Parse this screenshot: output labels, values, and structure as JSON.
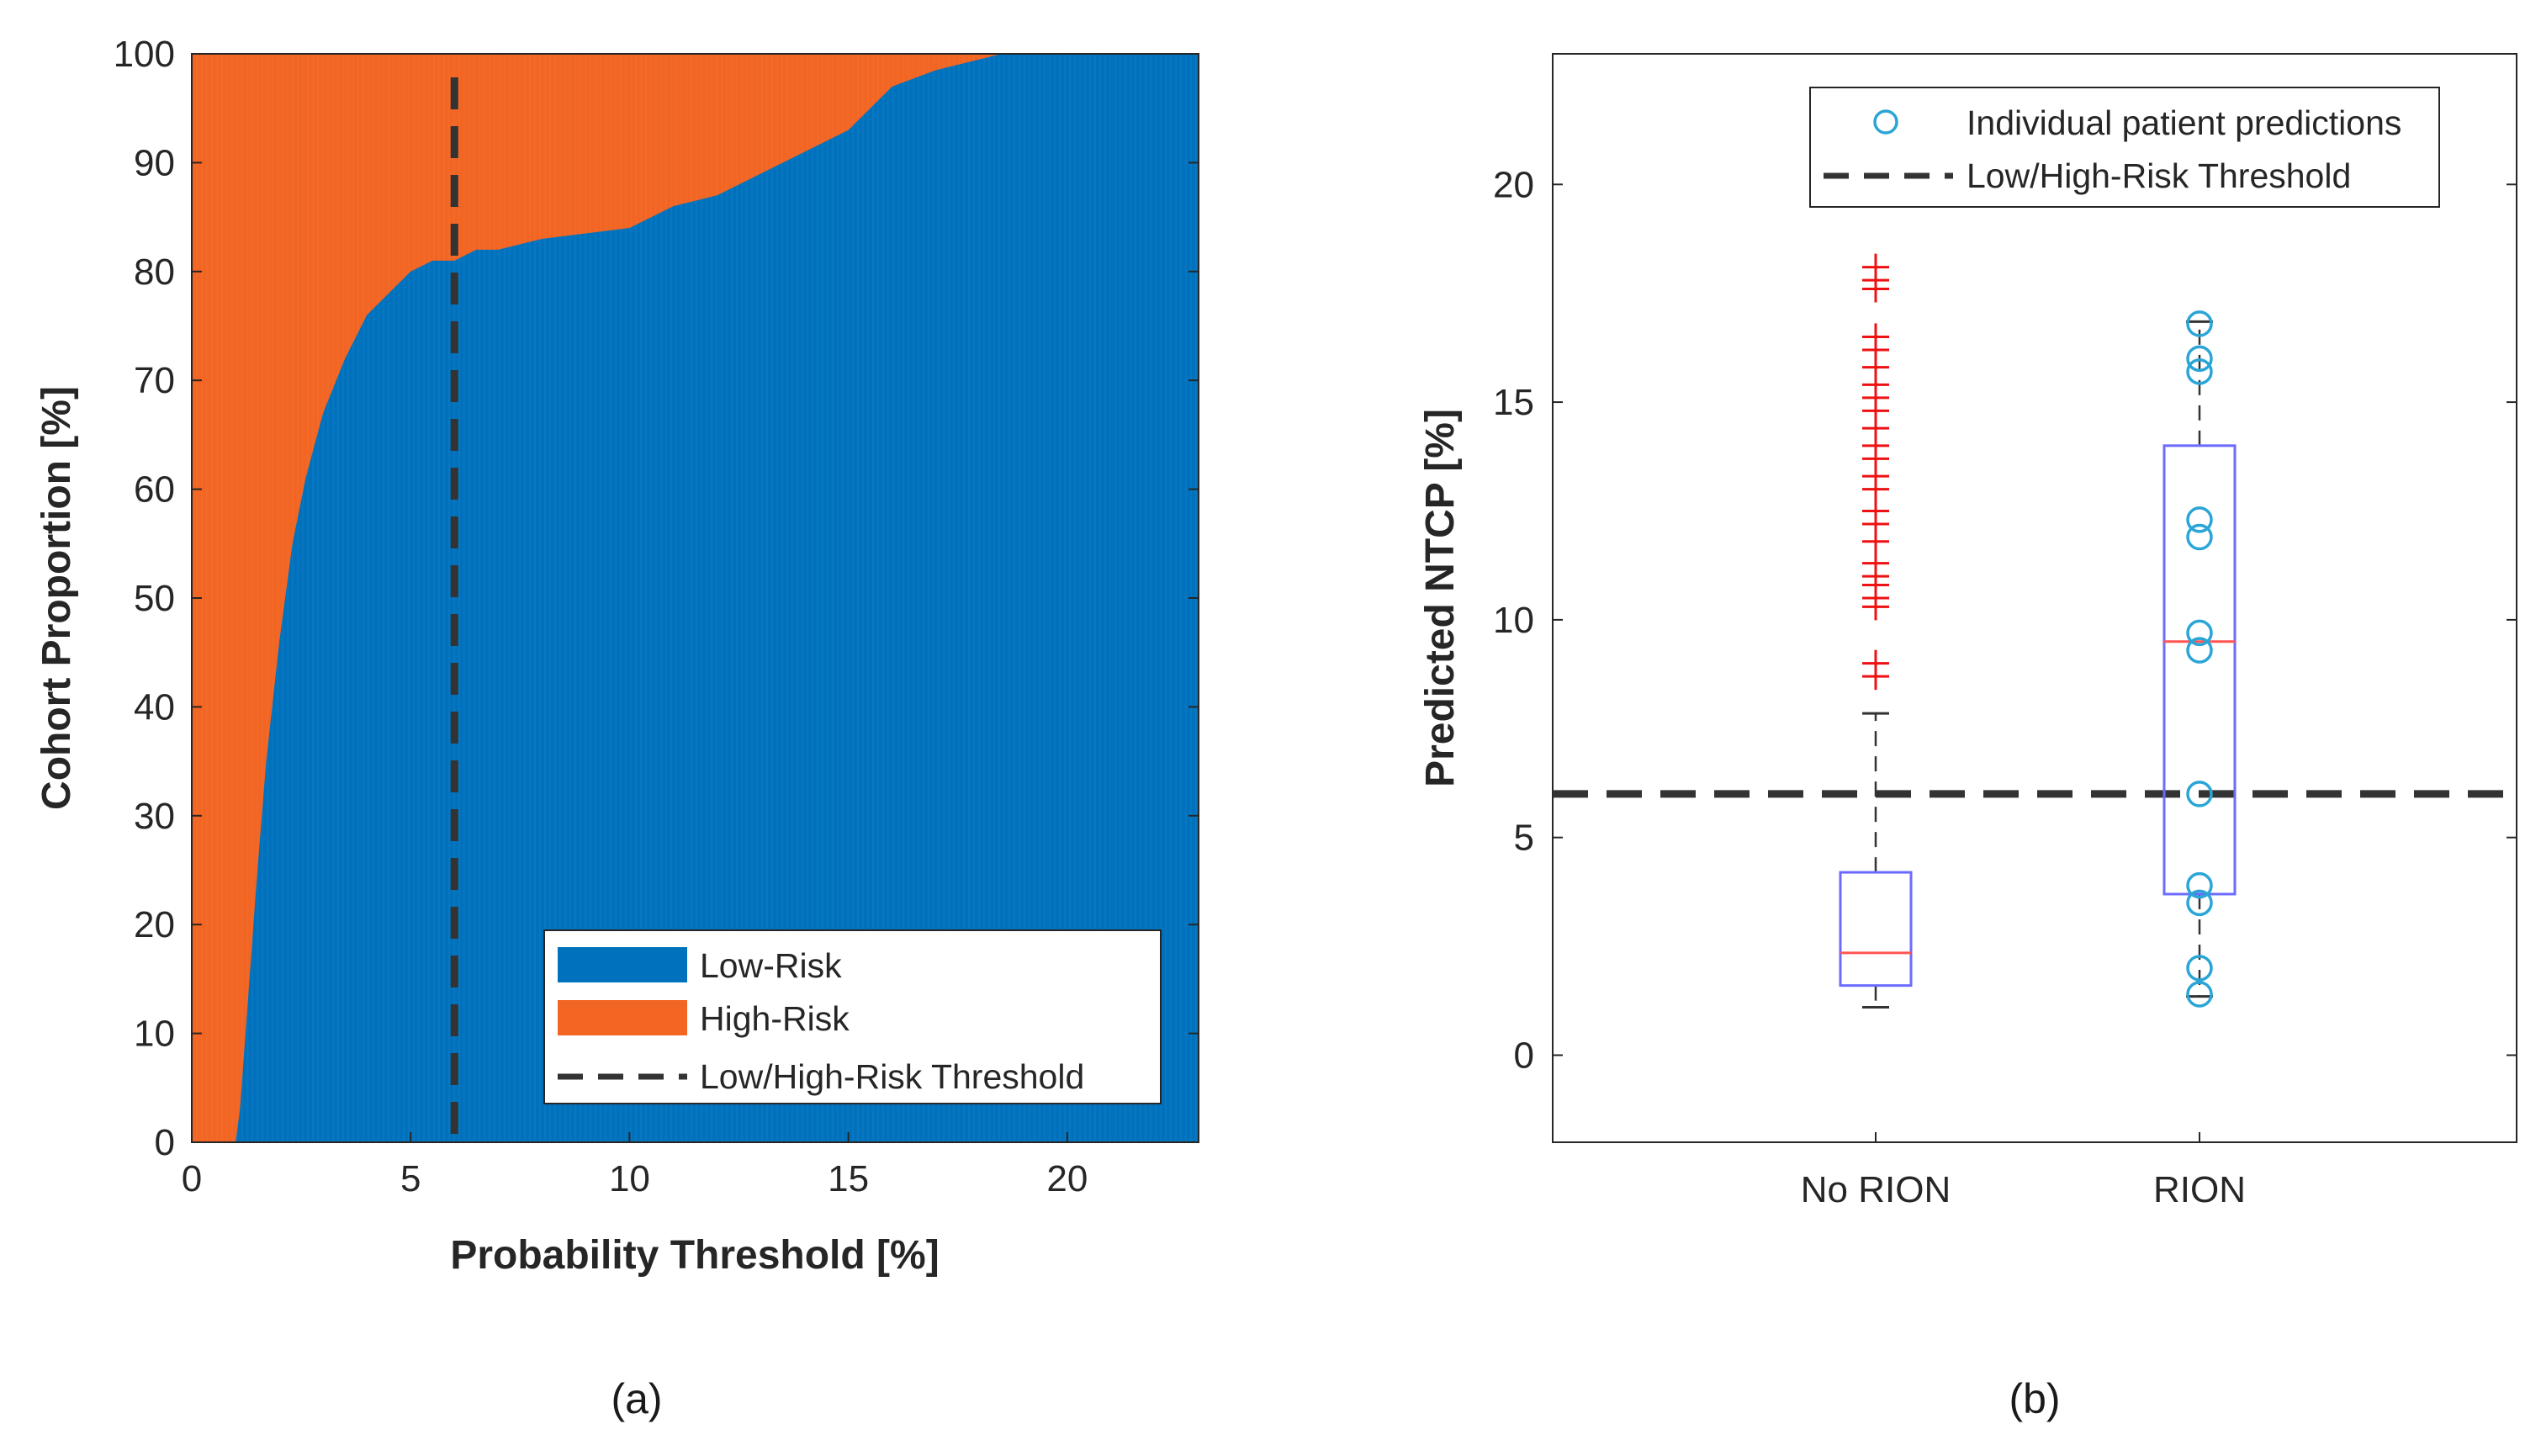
{
  "chart_data": [
    {
      "type": "area",
      "panel_label": "(a)",
      "xlabel": "Probability Threshold [%]",
      "ylabel": "Cohort Proportion [%]",
      "xlim": [
        0,
        23
      ],
      "ylim": [
        0,
        100
      ],
      "xticks": [
        "0",
        "5",
        "10",
        "15",
        "20"
      ],
      "yticks": [
        "0",
        "10",
        "20",
        "30",
        "40",
        "50",
        "60",
        "70",
        "80",
        "90",
        "100"
      ],
      "grid": false,
      "legend_position": "bottom-right",
      "threshold": 6,
      "colors": {
        "low": "#0072bd",
        "high": "#f26522",
        "threshold": "#333333"
      },
      "x": [
        0,
        1.0,
        1.1,
        1.3,
        1.5,
        1.7,
        2.0,
        2.3,
        2.6,
        3.0,
        3.5,
        4.0,
        4.5,
        5.0,
        5.5,
        6.0,
        6.5,
        7.0,
        8.0,
        9.0,
        10.0,
        11.0,
        12.0,
        13.0,
        14.0,
        15.0,
        15.5,
        16.0,
        17.0,
        18.0,
        18.5,
        20.0,
        23.0
      ],
      "series": [
        {
          "name": "Low-Risk",
          "values": [
            0,
            0,
            3,
            14,
            25,
            35,
            46,
            55,
            61,
            67,
            72,
            76,
            78,
            80,
            81,
            81,
            82,
            82,
            83,
            83.5,
            84,
            86,
            87,
            89,
            91,
            93,
            95,
            97,
            98.5,
            99.5,
            100,
            100,
            100
          ]
        },
        {
          "name": "High-Risk",
          "values": [
            100,
            100,
            97,
            86,
            75,
            65,
            54,
            45,
            39,
            33,
            28,
            24,
            22,
            20,
            19,
            19,
            18,
            18,
            17,
            16.5,
            16,
            14,
            13,
            11,
            9,
            7,
            5,
            3,
            1.5,
            0.5,
            0,
            0,
            0
          ]
        }
      ],
      "legend": [
        "Low-Risk",
        "High-Risk",
        "Low/High-Risk Threshold"
      ]
    },
    {
      "type": "box",
      "panel_label": "(b)",
      "xlabel": "",
      "ylabel": "Predicted NTCP [%]",
      "ylim": [
        -2,
        23
      ],
      "yticks": [
        "0",
        "5",
        "10",
        "15",
        "20"
      ],
      "categories": [
        "No RION",
        "RION"
      ],
      "threshold": 6,
      "colors": {
        "box": "#6b6bff",
        "median": "#ff5555",
        "outlier": "#ee1111",
        "points": "#2aa5d6",
        "threshold": "#333333"
      },
      "boxes": [
        {
          "name": "No RION",
          "q1": 1.6,
          "median": 2.35,
          "q3": 4.2,
          "whisker_low": 1.1,
          "whisker_high": 7.85,
          "outliers": [
            8.7,
            9.0,
            10.3,
            10.5,
            10.8,
            11.0,
            11.3,
            11.8,
            12.2,
            12.5,
            13.0,
            13.3,
            13.7,
            14.0,
            14.4,
            14.8,
            15.1,
            15.4,
            15.8,
            16.2,
            16.5,
            17.6,
            17.8,
            18.1
          ]
        },
        {
          "name": "RION",
          "q1": 3.7,
          "median": 9.5,
          "q3": 14.0,
          "whisker_low": 1.35,
          "whisker_high": 16.85,
          "outliers": []
        }
      ],
      "points": {
        "name": "Individual patient predictions",
        "category": "RION",
        "values": [
          1.4,
          2.0,
          3.5,
          3.9,
          6.0,
          9.3,
          9.7,
          11.9,
          12.3,
          15.7,
          16.0,
          16.8
        ]
      },
      "legend": [
        "Individual patient predictions",
        "Low/High-Risk Threshold"
      ]
    }
  ]
}
